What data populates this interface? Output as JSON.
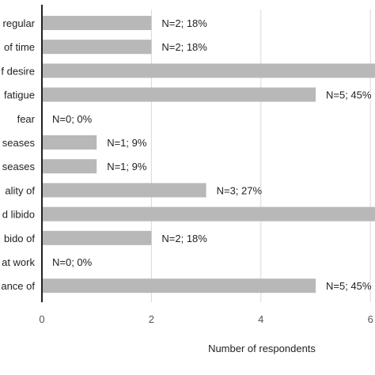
{
  "chart_data": {
    "type": "bar",
    "orientation": "horizontal",
    "categories": [
      "regular",
      "of time",
      "f desire",
      "fatigue",
      "fear",
      "seases",
      "seases",
      "ality of",
      "d libido",
      "bido of",
      "at work",
      "ance of"
    ],
    "values": [
      2,
      2,
      6.5,
      5,
      0,
      1,
      1,
      3,
      6.5,
      2,
      0,
      5
    ],
    "data_labels": [
      "N=2; 18%",
      "N=2; 18%",
      "",
      "N=5; 45%",
      "N=0; 0%",
      "N=1; 9%",
      "N=1; 9%",
      "N=3; 27%",
      "",
      "N=2; 18%",
      "N=0; 0%",
      "N=5; 45%"
    ],
    "xlabel": "Number of respondents",
    "ylabel": "",
    "title": "",
    "xlim": [
      0,
      6
    ],
    "xticks": [
      0,
      2,
      4,
      6
    ],
    "xtick_labels": [
      "0",
      "2",
      "4",
      "6"
    ],
    "grid": "vertical",
    "bar_color": "#b8b8b8",
    "grid_color": "#d9d9d9",
    "axis_color": "#222222"
  }
}
